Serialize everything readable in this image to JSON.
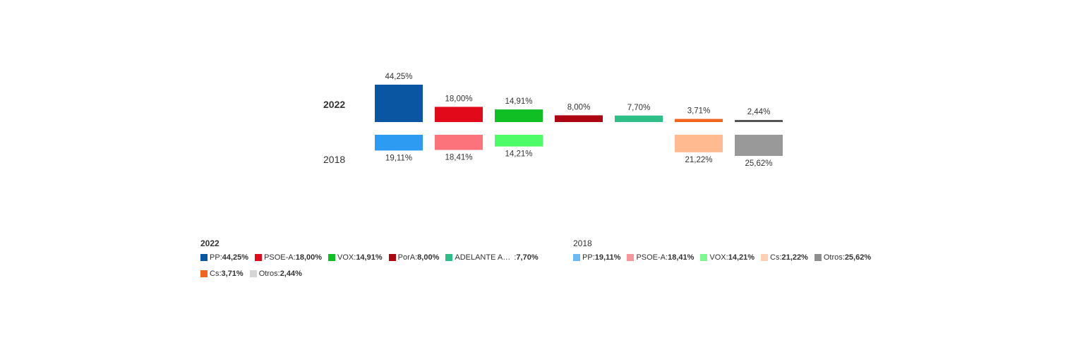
{
  "chart_data": {
    "type": "bar",
    "title": "",
    "categories": [
      "PP",
      "PSOE-A",
      "VOX",
      "PorA",
      "ADELANTE AN…",
      "Cs",
      "Otros"
    ],
    "series": [
      {
        "name": "2022",
        "values": [
          44.25,
          18.0,
          14.91,
          8.0,
          7.7,
          3.71,
          2.44
        ],
        "labels": [
          "44,25%",
          "18,00%",
          "14,91%",
          "8,00%",
          "7,70%",
          "3,71%",
          "2,44%"
        ],
        "colors": [
          "#0b56a2",
          "#e20a1a",
          "#0fbf24",
          "#ad0613",
          "#2dbf87",
          "#f26521",
          "#555555"
        ]
      },
      {
        "name": "2018",
        "values": [
          19.11,
          18.41,
          14.21,
          null,
          null,
          21.22,
          25.62
        ],
        "labels": [
          "19,11%",
          "18,41%",
          "14,21%",
          "",
          "",
          "21,22%",
          "25,62%"
        ],
        "colors": [
          "#2e9bf3",
          "#fc737b",
          "#4dfc66",
          null,
          null,
          "#ffbb8f",
          "#999999"
        ]
      }
    ],
    "xlabel": "",
    "ylabel": "",
    "grid": false
  },
  "years": {
    "current": "2022",
    "previous": "2018"
  },
  "legend_2022": {
    "title": "2022",
    "items": [
      {
        "name": "PP",
        "value": "44,25%",
        "color": "#0b56a2"
      },
      {
        "name": "PSOE-A",
        "value": "18,00%",
        "color": "#e20a1a"
      },
      {
        "name": "VOX",
        "value": "14,91%",
        "color": "#0fbf24"
      },
      {
        "name": "PorA",
        "value": "8,00%",
        "color": "#ad0613"
      },
      {
        "name": "ADELANTE AN…",
        "value": "7,70%",
        "color": "#2dbf87"
      },
      {
        "name": "Cs",
        "value": "3,71%",
        "color": "#f26521"
      },
      {
        "name": "Otros",
        "value": "2,44%",
        "color": "#d6d6d6"
      }
    ]
  },
  "legend_2018": {
    "title": "2018",
    "items": [
      {
        "name": "PP",
        "value": "19,11%",
        "color": "#6cb9f5"
      },
      {
        "name": "PSOE-A",
        "value": "18,41%",
        "color": "#f7969c"
      },
      {
        "name": "VOX",
        "value": "14,21%",
        "color": "#7dfa8f"
      },
      {
        "name": "Cs",
        "value": "21,22%",
        "color": "#ffd0b1"
      },
      {
        "name": "Otros",
        "value": "25,62%",
        "color": "#8e8e8e"
      }
    ]
  }
}
